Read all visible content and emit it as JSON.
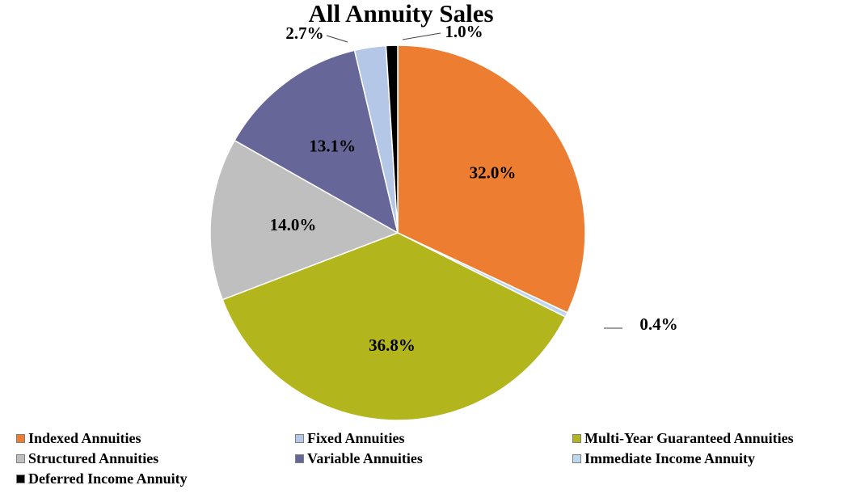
{
  "chart_data": {
    "type": "pie",
    "title": "All Annuity Sales",
    "slices": [
      {
        "name": "Indexed Annuities",
        "value": 32.0,
        "label": "32.0%",
        "color": "#ED7D31"
      },
      {
        "name": "Immediate Income Annuity",
        "value": 0.4,
        "label": "0.4%",
        "color": "#BDD7EE"
      },
      {
        "name": "Multi-Year Guaranteed Annuities",
        "value": 36.8,
        "label": "36.8%",
        "color": "#B2B51B"
      },
      {
        "name": "Structured Annuities",
        "value": 14.0,
        "label": "14.0%",
        "color": "#BFBFBF"
      },
      {
        "name": "Variable Annuities",
        "value": 13.1,
        "label": "13.1%",
        "color": "#666699"
      },
      {
        "name": "Fixed Annuities",
        "value": 2.7,
        "label": "2.7%",
        "color": "#B4C7E7"
      },
      {
        "name": "Deferred Income Annuity",
        "value": 1.0,
        "label": "1.0%",
        "color": "#000000"
      }
    ],
    "legend": [
      {
        "name": "Indexed Annuities",
        "color": "#ED7D31"
      },
      {
        "name": "Fixed Annuities",
        "color": "#B4C7E7"
      },
      {
        "name": "Multi-Year Guaranteed Annuities",
        "color": "#B2B51B"
      },
      {
        "name": "Structured Annuities",
        "color": "#BFBFBF"
      },
      {
        "name": "Variable Annuities",
        "color": "#666699"
      },
      {
        "name": "Immediate Income Annuity",
        "color": "#BDD7EE"
      },
      {
        "name": "Deferred Income Annuity",
        "color": "#000000"
      }
    ],
    "legend_position": "bottom"
  }
}
